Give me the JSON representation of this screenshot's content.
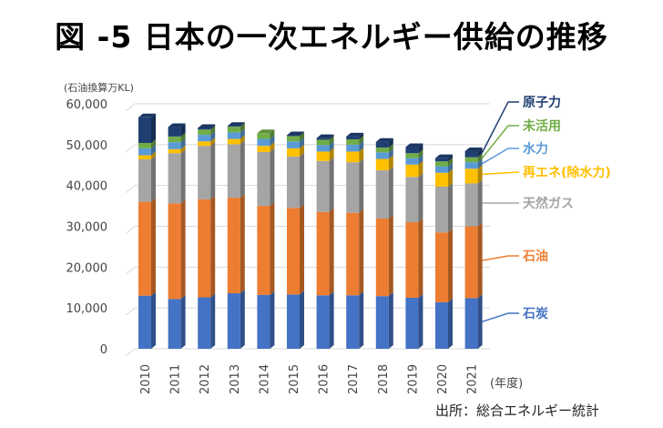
{
  "title": "図 -5 日本の一次エネルギー供給の推移",
  "unit_label": "(石油換算万KL)",
  "source": "出所：総合エネルギー統計",
  "chart_data": {
    "type": "bar",
    "stacked": true,
    "title": "図 -5 日本の一次エネルギー供給の推移",
    "xlabel": "(年度)",
    "ylabel": "(石油換算万KL)",
    "ylim": [
      0,
      60000
    ],
    "yticks": [
      "0",
      "10,000",
      "20,000",
      "30,000",
      "40,000",
      "50,000",
      "60,000"
    ],
    "grid": true,
    "legend": "right",
    "categories": [
      "2010",
      "2011",
      "2012",
      "2013",
      "2014",
      "2015",
      "2016",
      "2017",
      "2018",
      "2019",
      "2020",
      "2021"
    ],
    "series": [
      {
        "name": "石炭",
        "color": "#4472C4",
        "values": [
          13000,
          12200,
          12600,
          13600,
          13200,
          13300,
          13100,
          13100,
          12900,
          12500,
          11400,
          12400
        ]
      },
      {
        "name": "石油",
        "color": "#ED7D31",
        "values": [
          23000,
          23400,
          24000,
          23400,
          21800,
          21200,
          20400,
          20200,
          19000,
          18500,
          17100,
          17600
        ]
      },
      {
        "name": "天然ガス",
        "color": "#A5A5A5",
        "values": [
          10400,
          12300,
          13100,
          13100,
          13200,
          12600,
          12500,
          12400,
          11800,
          11100,
          11200,
          10500
        ]
      },
      {
        "name": "再エネ(除水力)",
        "color": "#FFC000",
        "values": [
          1000,
          1000,
          1100,
          1300,
          1500,
          2000,
          2300,
          2600,
          2800,
          3000,
          3400,
          3600
        ]
      },
      {
        "name": "水力",
        "color": "#5B9BD5",
        "values": [
          1700,
          1700,
          1600,
          1600,
          1700,
          1700,
          1600,
          1700,
          1600,
          1600,
          1600,
          1600
        ]
      },
      {
        "name": "未活用",
        "color": "#70AD47",
        "values": [
          1300,
          1400,
          1300,
          1400,
          1400,
          1300,
          1300,
          1300,
          1200,
          1200,
          1200,
          1200
        ]
      },
      {
        "name": "原子力",
        "color": "#1F3F73",
        "values": [
          6300,
          2300,
          400,
          200,
          0,
          200,
          400,
          700,
          1400,
          1500,
          800,
          1500
        ]
      }
    ],
    "legend_order": [
      "原子力",
      "未活用",
      "水力",
      "再エネ(除水力)",
      "天然ガス",
      "石油",
      "石炭"
    ]
  }
}
